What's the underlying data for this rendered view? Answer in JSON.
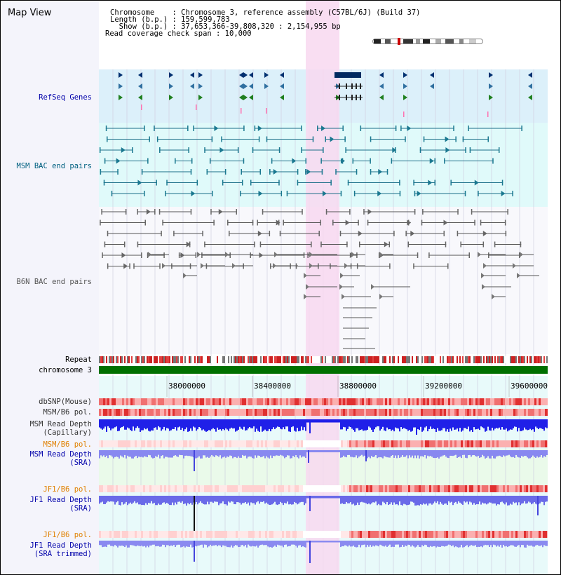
{
  "title": "Map View",
  "header": {
    "line1": "Chromosome    : Chromosome 3, reference assembly (C57BL/6J) (Build 37)",
    "line2": "Length (b.p.) : 159,599,783",
    "line3": "  Show (b.p.) : 37,653,366-39,808,320 : 2,154,955 bp",
    "line4": "Read coverage check span : 10,000"
  },
  "tracks": {
    "refseq": "RefSeq Genes",
    "msm_bac": "MSM BAC end pairs",
    "b6n_bac": "B6N BAC end pairs",
    "repeat": "Repeat",
    "chromosome": "chromosome 3",
    "dbsnp": "dbSNP(Mouse)",
    "msm_b6_pol1": "MSM/B6 pol.",
    "msm_depth_cap": "MSM Read Depth\n(Capillary)",
    "msm_b6_pol2": "MSM/B6 pol.",
    "msm_depth_sra": "MSM Read Depth\n(SRA)",
    "jf1_b6_pol1": "JF1/B6 pol.",
    "jf1_depth_sra": "JF1 Read Depth\n(SRA)",
    "jf1_b6_pol2": "JF1/B6 pol.",
    "jf1_depth_trim": "JF1 Read Depth\n(SRA trimmed)"
  },
  "axis": {
    "ticks": [
      "38000000",
      "38400000",
      "38800000",
      "39200000",
      "39600000"
    ]
  },
  "colors": {
    "highlight": "#f8d8f0",
    "refseq_bg": "#dcf0fa",
    "msm_bg": "#e0fafa",
    "chromosome": "#007000",
    "depth_blue": "#2020e8",
    "depth_light": "#8888f0",
    "pol_red": "#e03030",
    "label_blue": "#0000aa",
    "label_teal": "#006080",
    "label_orange": "#e08000"
  }
}
